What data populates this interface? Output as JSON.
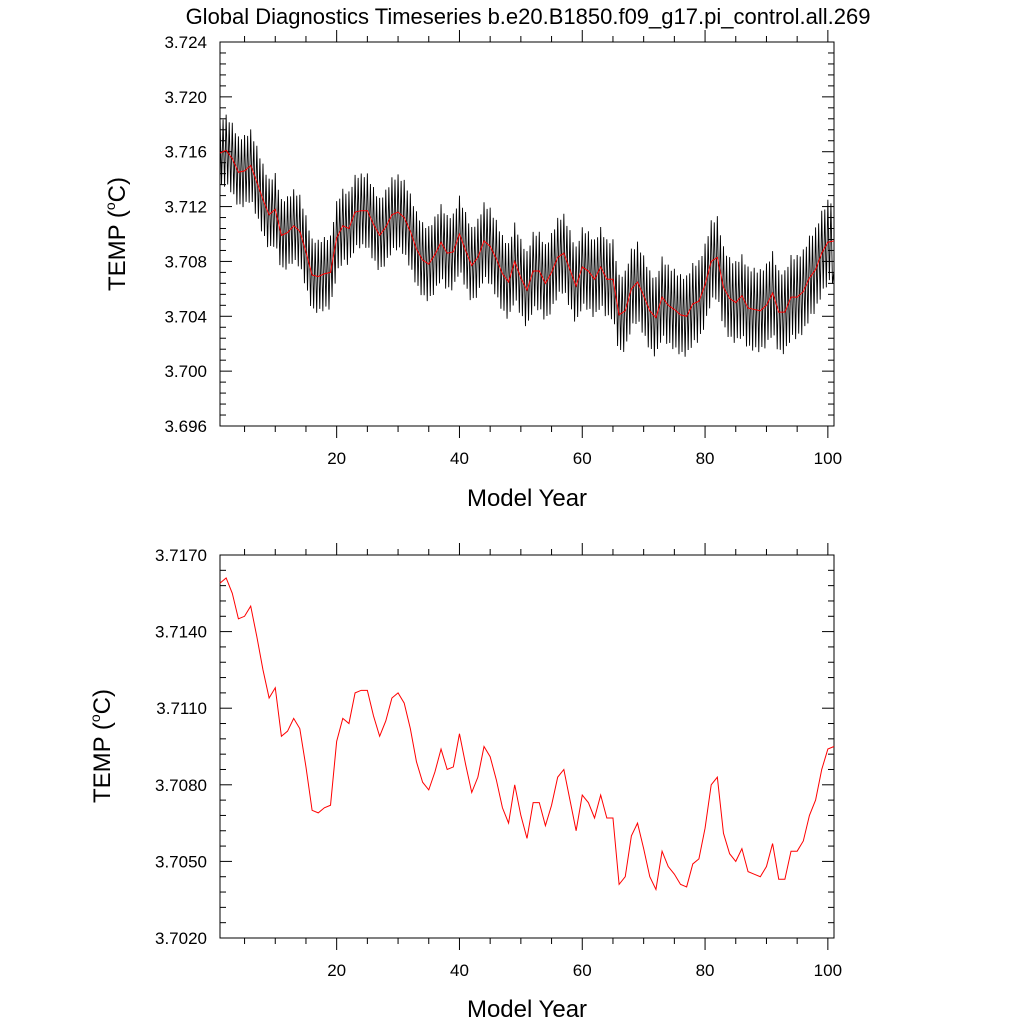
{
  "title": "Global Diagnostics Timeseries b.e20.B1850.f09_g17.pi_control.all.269",
  "colors": {
    "monthly": "#000000",
    "annual": "#ff0000",
    "axes": "#000000"
  },
  "chart_data": [
    {
      "type": "line",
      "xlabel": "Model Year",
      "ylabel_prefix": "TEMP (",
      "ylabel_super": "o",
      "ylabel_suffix": "C)",
      "xlim": [
        1,
        101
      ],
      "ylim": [
        3.696,
        3.724
      ],
      "xticks": [
        20,
        40,
        60,
        80,
        100
      ],
      "yticks": [
        3.696,
        3.7,
        3.704,
        3.708,
        3.712,
        3.716,
        3.72,
        3.724
      ],
      "ytick_decimals": 3,
      "series": [
        {
          "kind": "monthly",
          "annual_mean_source": "annual",
          "seasonal_amplitude_start": 0.0052,
          "seasonal_amplitude_end": 0.0062,
          "points_per_year": 4,
          "color": "#000000"
        },
        {
          "kind": "annual",
          "color": "#ff0000"
        }
      ]
    },
    {
      "type": "line",
      "xlabel": "Model Year",
      "ylabel_prefix": "TEMP (",
      "ylabel_super": "o",
      "ylabel_suffix": "C)",
      "xlim": [
        1,
        101
      ],
      "ylim": [
        3.702,
        3.717
      ],
      "xticks": [
        20,
        40,
        60,
        80,
        100
      ],
      "yticks": [
        3.702,
        3.705,
        3.708,
        3.711,
        3.714,
        3.717
      ],
      "ytick_decimals": 4,
      "series": [
        {
          "kind": "annual",
          "color": "#ff0000"
        }
      ]
    }
  ],
  "annual": {
    "x": [
      1,
      2,
      3,
      4,
      5,
      6,
      7,
      8,
      9,
      10,
      11,
      12,
      13,
      14,
      15,
      16,
      17,
      18,
      19,
      20,
      21,
      22,
      23,
      24,
      25,
      26,
      27,
      28,
      29,
      30,
      31,
      32,
      33,
      34,
      35,
      36,
      37,
      38,
      39,
      40,
      41,
      42,
      43,
      44,
      45,
      46,
      47,
      48,
      49,
      50,
      51,
      52,
      53,
      54,
      55,
      56,
      57,
      58,
      59,
      60,
      61,
      62,
      63,
      64,
      65,
      66,
      67,
      68,
      69,
      70,
      71,
      72,
      73,
      74,
      75,
      76,
      77,
      78,
      79,
      80,
      81,
      82,
      83,
      84,
      85,
      86,
      87,
      88,
      89,
      90,
      91,
      92,
      93,
      94,
      95,
      96,
      97,
      98,
      99,
      100,
      101
    ],
    "y": [
      3.7159,
      3.7161,
      3.7155,
      3.7145,
      3.7146,
      3.715,
      3.7138,
      3.7125,
      3.7114,
      3.7118,
      3.7099,
      3.7101,
      3.7106,
      3.7102,
      3.7087,
      3.707,
      3.7069,
      3.7071,
      3.7072,
      3.7097,
      3.7106,
      3.7104,
      3.7116,
      3.7117,
      3.7117,
      3.7107,
      3.7099,
      3.7105,
      3.7114,
      3.7116,
      3.7112,
      3.7102,
      3.7089,
      3.7081,
      3.7078,
      3.7085,
      3.7094,
      3.7086,
      3.7087,
      3.71,
      3.7088,
      3.7077,
      3.7083,
      3.7095,
      3.7091,
      3.7082,
      3.7071,
      3.7065,
      3.708,
      3.7068,
      3.7059,
      3.7073,
      3.7073,
      3.7064,
      3.7072,
      3.7083,
      3.7086,
      3.7074,
      3.7062,
      3.7076,
      3.7073,
      3.7067,
      3.7076,
      3.7067,
      3.7067,
      3.7041,
      3.7044,
      3.706,
      3.7065,
      3.7055,
      3.7044,
      3.7039,
      3.7054,
      3.7048,
      3.7045,
      3.7041,
      3.704,
      3.7049,
      3.7051,
      3.7063,
      3.708,
      3.7083,
      3.7061,
      3.7053,
      3.705,
      3.7055,
      3.7046,
      3.7045,
      3.7044,
      3.7048,
      3.7057,
      3.7043,
      3.7043,
      3.7054,
      3.7054,
      3.7058,
      3.7068,
      3.7074,
      3.7086,
      3.7094,
      3.7095
    ]
  }
}
